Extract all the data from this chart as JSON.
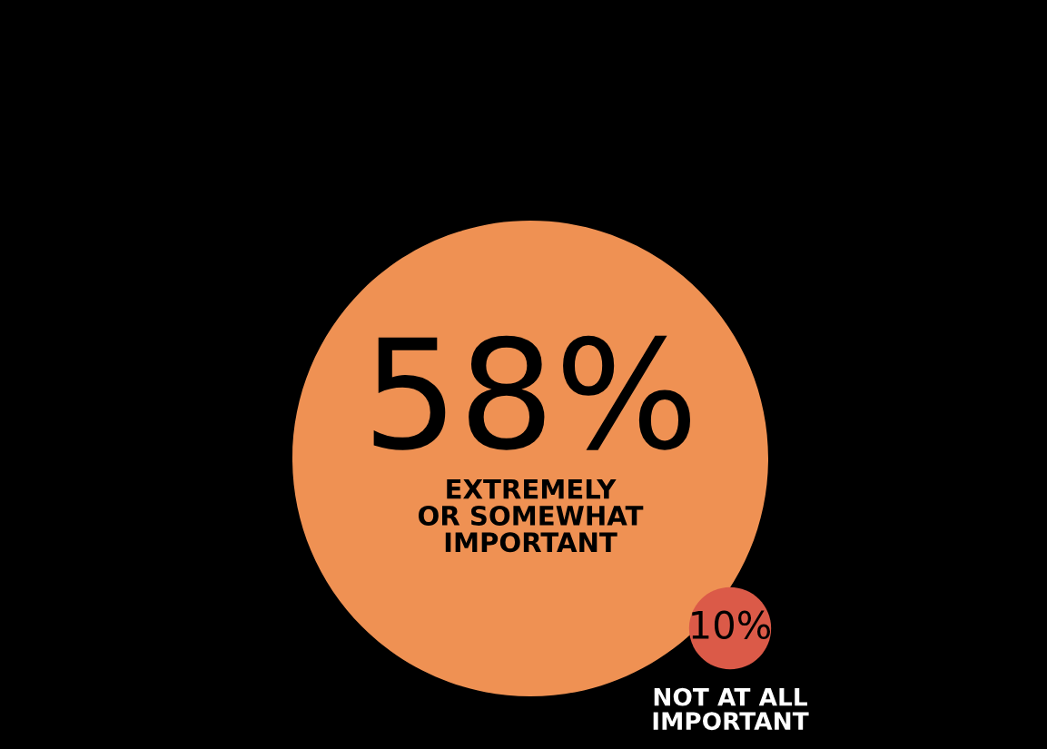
{
  "chart_data": {
    "type": "other",
    "categories": [
      "EXTREMELY\nOR SOMEWHAT\nIMPORTANT",
      "NOT AT ALL\nIMPORTANT"
    ],
    "values": [
      58,
      10
    ],
    "value_labels": [
      "58%",
      "10%"
    ],
    "colors": [
      "#ef9153",
      "#db5a48"
    ]
  }
}
